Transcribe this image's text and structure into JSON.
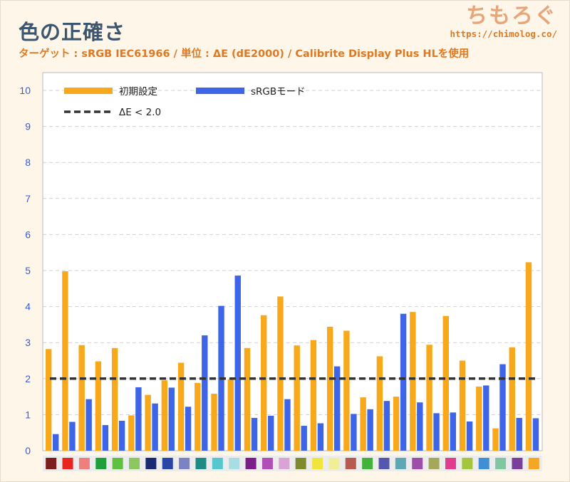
{
  "header": {
    "title": "色の正確さ",
    "subtitle": "ターゲット : sRGB IEC61966 / 単位 : ΔE (dE2000) / Calibrite Display Plus HLを使用"
  },
  "brand": {
    "logo": "ちもろぐ",
    "url": "https://chimolog.co/"
  },
  "colors": {
    "default_series": "#f7a81b",
    "srgb_series": "#3e64e8",
    "threshold": "#333333",
    "grid": "#cfcfcf",
    "tick_text": "#3b5ad8",
    "title": "#3d5670",
    "subtitle": "#e07822"
  },
  "chart_data": {
    "type": "bar",
    "title": "色の正確さ",
    "ylim": [
      0,
      10
    ],
    "y_ticks": [
      "0",
      "1",
      "2",
      "3",
      "4",
      "5",
      "6",
      "7",
      "8",
      "9",
      "10"
    ],
    "grid": true,
    "legend_position": "top-left",
    "categories": [
      "#7e1d1d",
      "#e8251f",
      "#ef7f7d",
      "#1f9e3c",
      "#5ec142",
      "#8cc760",
      "#1a2a6e",
      "#2a45a8",
      "#7b83c4",
      "#1e8a84",
      "#56c7cf",
      "#a8dde3",
      "#7b1e87",
      "#b14fb8",
      "#d9a3d6",
      "#7e8a2d",
      "#f0e53a",
      "#f1ee9a",
      "#b85a4e",
      "#43b23a",
      "#5655b0",
      "#5da8b4",
      "#9c4ea8",
      "#a5a85a",
      "#e23c8e",
      "#a5c53b",
      "#3e8fd6",
      "#7fc6a2",
      "#7a3f9b",
      "#f5a623"
    ],
    "series": [
      {
        "name": "初期設定",
        "values": [
          2.82,
          4.98,
          2.93,
          2.48,
          2.85,
          0.98,
          1.55,
          1.95,
          2.44,
          1.88,
          1.58,
          1.98,
          2.85,
          3.76,
          4.28,
          2.92,
          3.07,
          3.44,
          3.33,
          1.48,
          2.62,
          1.5,
          3.85,
          2.94,
          3.74,
          2.5,
          1.78,
          0.62,
          2.87,
          5.23
        ]
      },
      {
        "name": "sRGBモード",
        "values": [
          0.46,
          0.8,
          1.43,
          0.71,
          0.83,
          1.76,
          1.31,
          1.75,
          1.22,
          3.2,
          4.02,
          4.86,
          0.91,
          0.97,
          1.43,
          0.69,
          0.76,
          2.34,
          1.02,
          1.15,
          1.38,
          3.8,
          1.34,
          1.04,
          1.06,
          0.81,
          1.81,
          2.4,
          0.91,
          0.9
        ]
      }
    ],
    "threshold": {
      "label": "ΔE < 2.0",
      "value": 2.0
    }
  }
}
